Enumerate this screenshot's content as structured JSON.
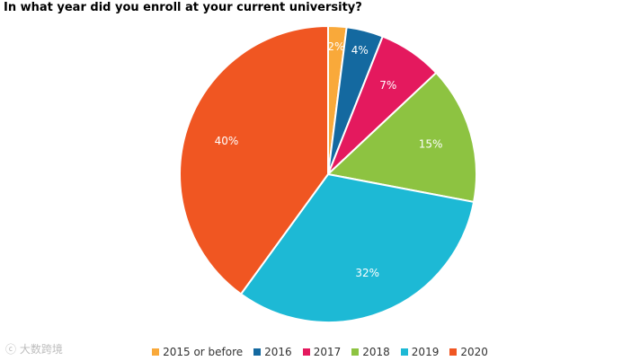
{
  "chart_data": {
    "type": "pie",
    "title": "In what year did you enroll at your current university?",
    "categories": [
      "2015 or before",
      "2016",
      "2017",
      "2018",
      "2019",
      "2020"
    ],
    "values": [
      2,
      4,
      7,
      15,
      32,
      40
    ],
    "data_labels": [
      "2%",
      "4%",
      "7%",
      "15%",
      "32%",
      "40%"
    ],
    "colors": [
      "#f9a93a",
      "#1469a0",
      "#e4195e",
      "#8dc341",
      "#1db9d5",
      "#f05622"
    ],
    "legend_position": "bottom"
  },
  "watermark": {
    "text": "大数跨境"
  }
}
